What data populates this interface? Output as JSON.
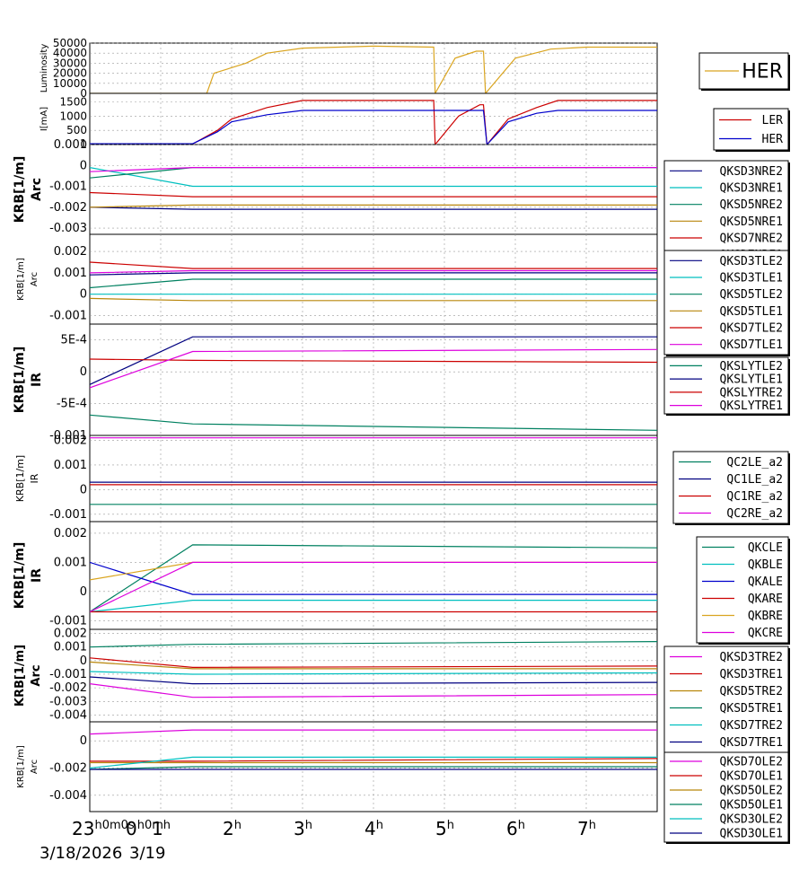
{
  "time_axis": {
    "date_start": "3/18/2026",
    "date_next": "3/19",
    "tick_labels": [
      "23h0m0s",
      "0h0m",
      "1h",
      "2h",
      "3h",
      "4h",
      "5h",
      "6h",
      "7h"
    ]
  },
  "chart_data": [
    {
      "type": "line",
      "ylabel": "Luminosity",
      "yticks": [
        "50000",
        "40000",
        "30000",
        "20000",
        "10000",
        "0"
      ],
      "ylim": [
        0,
        50000
      ],
      "legend": [
        "HER"
      ],
      "colors": [
        "#daa520"
      ],
      "series": [
        {
          "name": "HER",
          "x": [
            0,
            1.65,
            1.75,
            2.2,
            2.5,
            3.0,
            4.0,
            4.85,
            4.87,
            5.15,
            5.45,
            5.55,
            5.58,
            6.0,
            6.5,
            7.0,
            8.0
          ],
          "values": [
            0,
            0,
            20000,
            30000,
            40000,
            45000,
            47000,
            46000,
            0,
            35000,
            42000,
            42000,
            0,
            35000,
            44000,
            46000,
            46000
          ]
        }
      ]
    },
    {
      "type": "line",
      "ylabel": "I[mA]",
      "yticks": [
        "1500",
        "1000",
        "500",
        "0"
      ],
      "ylim": [
        0,
        1800
      ],
      "legend": [
        "LER",
        "HER"
      ],
      "colors": [
        "#cc0000",
        "#0000cc"
      ],
      "series": [
        {
          "name": "LER",
          "x": [
            0,
            1.45,
            1.8,
            2.0,
            2.5,
            3.0,
            4.85,
            4.87,
            5.2,
            5.5,
            5.55,
            5.6,
            5.9,
            6.3,
            6.6,
            8.0
          ],
          "values": [
            20,
            20,
            500,
            900,
            1300,
            1550,
            1550,
            0,
            1000,
            1400,
            1400,
            0,
            900,
            1300,
            1550,
            1550
          ]
        },
        {
          "name": "HER",
          "x": [
            0,
            1.45,
            1.8,
            2.0,
            2.5,
            3.0,
            5.55,
            5.6,
            5.9,
            6.3,
            6.6,
            8.0
          ],
          "values": [
            30,
            30,
            450,
            800,
            1050,
            1200,
            1200,
            0,
            800,
            1100,
            1200,
            1200
          ]
        }
      ]
    },
    {
      "type": "line",
      "ylabel": "KRB[1/m] Arc",
      "yticks": [
        "0.001",
        "0",
        "-0.001",
        "-0.002",
        "-0.003"
      ],
      "ylim": [
        -0.0033,
        0.001
      ],
      "legend": [
        "QKSD3NRE2",
        "QKSD3NRE1",
        "QKSD5NRE2",
        "QKSD5NRE1",
        "QKSD7NRE2",
        "QKSD7NRE1"
      ],
      "colors": [
        "#000080",
        "#00bfbf",
        "#008060",
        "#b8860b",
        "#cc0000",
        "#dd00dd"
      ],
      "series": [
        {
          "name": "QKSD3NRE2",
          "x": [
            0,
            1.45,
            8.0
          ],
          "values": [
            -0.002,
            -0.0021,
            -0.0021
          ]
        },
        {
          "name": "QKSD3NRE1",
          "x": [
            0,
            1.45,
            8.0
          ],
          "values": [
            -0.0001,
            -0.001,
            -0.001
          ]
        },
        {
          "name": "QKSD5NRE2",
          "x": [
            0,
            1.45,
            8.0
          ],
          "values": [
            -0.0006,
            -0.0001,
            -0.0001
          ]
        },
        {
          "name": "QKSD5NRE1",
          "x": [
            0,
            1.45,
            8.0
          ],
          "values": [
            -0.002,
            -0.0019,
            -0.0019
          ]
        },
        {
          "name": "QKSD7NRE2",
          "x": [
            0,
            1.45,
            8.0
          ],
          "values": [
            -0.0013,
            -0.0015,
            -0.0015
          ]
        },
        {
          "name": "QKSD7NRE1",
          "x": [
            0,
            1.45,
            8.0
          ],
          "values": [
            -0.0003,
            -0.0001,
            -0.0001
          ]
        }
      ]
    },
    {
      "type": "line",
      "ylabel": "KRB[1/m] Arc",
      "yticks": [
        "0.002",
        "0.001",
        "0",
        "-0.001"
      ],
      "ylim": [
        -0.0014,
        0.0028
      ],
      "legend": [
        "QKSD3TLE2",
        "QKSD3TLE1",
        "QKSD5TLE2",
        "QKSD5TLE1",
        "QKSD7TLE2",
        "QKSD7TLE1"
      ],
      "colors": [
        "#000080",
        "#00bfbf",
        "#008060",
        "#b8860b",
        "#cc0000",
        "#dd00dd"
      ],
      "series": [
        {
          "name": "QKSD3TLE2",
          "x": [
            0,
            1.45,
            8.0
          ],
          "values": [
            0.0009,
            0.001,
            0.001
          ]
        },
        {
          "name": "QKSD3TLE1",
          "x": [
            0,
            1.45,
            8.0
          ],
          "values": [
            0.0,
            0.0,
            0.0
          ]
        },
        {
          "name": "QKSD5TLE2",
          "x": [
            0,
            1.45,
            8.0
          ],
          "values": [
            0.0003,
            0.0007,
            0.0007
          ]
        },
        {
          "name": "QKSD5TLE1",
          "x": [
            0,
            1.45,
            8.0
          ],
          "values": [
            -0.0002,
            -0.0003,
            -0.0003
          ]
        },
        {
          "name": "QKSD7TLE2",
          "x": [
            0,
            1.45,
            8.0
          ],
          "values": [
            0.0015,
            0.0012,
            0.0012
          ]
        },
        {
          "name": "QKSD7TLE1",
          "x": [
            0,
            1.45,
            8.0
          ],
          "values": [
            0.001,
            0.0011,
            0.0011
          ]
        }
      ]
    },
    {
      "type": "line",
      "ylabel": "KRB[1/m] IR",
      "yticks": [
        "5E-4",
        "0",
        "-5E-4",
        "-0.001"
      ],
      "ylim": [
        -0.001,
        0.00075
      ],
      "legend": [
        "QKSLYTLE2",
        "QKSLYTLE1",
        "QKSLYTRE2",
        "QKSLYTRE1"
      ],
      "colors": [
        "#008060",
        "#000080",
        "#cc0000",
        "#dd00dd"
      ],
      "series": [
        {
          "name": "QKSLYTLE2",
          "x": [
            0,
            1.45,
            8.0
          ],
          "values": [
            -0.00068,
            -0.00082,
            -0.00092
          ]
        },
        {
          "name": "QKSLYTLE1",
          "x": [
            0,
            1.45,
            8.0
          ],
          "values": [
            -0.0002,
            0.00055,
            0.00055
          ]
        },
        {
          "name": "QKSLYTRE2",
          "x": [
            0,
            1.45,
            8.0
          ],
          "values": [
            0.0002,
            0.00018,
            0.00015
          ]
        },
        {
          "name": "QKSLYTRE1",
          "x": [
            0,
            1.45,
            8.0
          ],
          "values": [
            -0.00025,
            0.00032,
            0.00035
          ]
        }
      ]
    },
    {
      "type": "line",
      "ylabel": "KRB[1/m] IR",
      "yticks": [
        "0.002",
        "0.001",
        "0",
        "-0.001"
      ],
      "ylim": [
        -0.0013,
        0.0022
      ],
      "legend": [
        "QC2LE_a2",
        "QC1LE_a2",
        "QC1RE_a2",
        "QC2RE_a2"
      ],
      "colors": [
        "#008060",
        "#000080",
        "#cc0000",
        "#dd00dd"
      ],
      "series": [
        {
          "name": "QC2LE_a2",
          "x": [
            0,
            8.0
          ],
          "values": [
            -0.0006,
            -0.0006
          ]
        },
        {
          "name": "QC1LE_a2",
          "x": [
            0,
            8.0
          ],
          "values": [
            0.0003,
            0.0003
          ]
        },
        {
          "name": "QC1RE_a2",
          "x": [
            0,
            8.0
          ],
          "values": [
            0.0002,
            0.0002
          ]
        },
        {
          "name": "QC2RE_a2",
          "x": [
            0,
            8.0
          ],
          "values": [
            0.0021,
            0.0021
          ]
        }
      ]
    },
    {
      "type": "line",
      "ylabel": "KRB[1/m] IR",
      "yticks": [
        "0.002",
        "0.001",
        "0",
        "-0.001"
      ],
      "ylim": [
        -0.0013,
        0.0024
      ],
      "legend": [
        "QKCLE",
        "QKBLE",
        "QKALE",
        "QKARE",
        "QKBRE",
        "QKCRE"
      ],
      "colors": [
        "#008060",
        "#00bfbf",
        "#0000cc",
        "#cc0000",
        "#daa520",
        "#dd00dd"
      ],
      "series": [
        {
          "name": "QKCLE",
          "x": [
            0,
            1.45,
            8.0
          ],
          "values": [
            -0.0007,
            0.0016,
            0.0015
          ]
        },
        {
          "name": "QKBLE",
          "x": [
            0,
            1.45,
            8.0
          ],
          "values": [
            -0.0007,
            -0.0003,
            -0.0003
          ]
        },
        {
          "name": "QKALE",
          "x": [
            0,
            1.45,
            8.0
          ],
          "values": [
            0.001,
            -0.0001,
            -0.0001
          ]
        },
        {
          "name": "QKARE",
          "x": [
            0,
            1.45,
            8.0
          ],
          "values": [
            -0.0007,
            -0.0007,
            -0.0007
          ]
        },
        {
          "name": "QKBRE",
          "x": [
            0,
            1.45,
            8.0
          ],
          "values": [
            0.0004,
            0.001,
            0.001
          ]
        },
        {
          "name": "QKCRE",
          "x": [
            0,
            1.45,
            8.0
          ],
          "values": [
            -0.0007,
            0.001,
            0.001
          ]
        }
      ]
    },
    {
      "type": "line",
      "ylabel": "KRB[1/m] Arc",
      "yticks": [
        "0.002",
        "0.001",
        "0",
        "-0.001",
        "-0.002",
        "-0.003",
        "-0.004"
      ],
      "ylim": [
        -0.0045,
        0.0023
      ],
      "legend": [
        "QKSD3TRE2",
        "QKSD3TRE1",
        "QKSD5TRE2",
        "QKSD5TRE1",
        "QKSD7TRE2",
        "QKSD7TRE1"
      ],
      "colors": [
        "#dd00dd",
        "#cc0000",
        "#b8860b",
        "#008060",
        "#00bfbf",
        "#000080"
      ],
      "series": [
        {
          "name": "QKSD3TRE2",
          "x": [
            0,
            1.45,
            8.0
          ],
          "values": [
            -0.0017,
            -0.0027,
            -0.0025
          ]
        },
        {
          "name": "QKSD3TRE1",
          "x": [
            0,
            1.45,
            8.0
          ],
          "values": [
            0.0002,
            -0.0005,
            -0.0004
          ]
        },
        {
          "name": "QKSD5TRE2",
          "x": [
            0,
            1.45,
            8.0
          ],
          "values": [
            -0.0001,
            -0.0006,
            -0.0006
          ]
        },
        {
          "name": "QKSD5TRE1",
          "x": [
            0,
            1.45,
            8.0
          ],
          "values": [
            0.001,
            0.0012,
            0.0014
          ]
        },
        {
          "name": "QKSD7TRE2",
          "x": [
            0,
            1.45,
            8.0
          ],
          "values": [
            -0.0008,
            -0.001,
            -0.0009
          ]
        },
        {
          "name": "QKSD7TRE1",
          "x": [
            0,
            1.45,
            8.0
          ],
          "values": [
            -0.0012,
            -0.0017,
            -0.0016
          ]
        }
      ]
    },
    {
      "type": "line",
      "ylabel": "KRB[1/m] Arc",
      "yticks": [
        "0",
        "-0.002",
        "-0.004"
      ],
      "ylim": [
        -0.0052,
        0.0014
      ],
      "legend": [
        "QKSD7OLE2",
        "QKSD7OLE1",
        "QKSD5OLE2",
        "QKSD5OLE1",
        "QKSD3OLE2",
        "QKSD3OLE1"
      ],
      "colors": [
        "#dd00dd",
        "#cc0000",
        "#b8860b",
        "#008060",
        "#00bfbf",
        "#000080"
      ],
      "series": [
        {
          "name": "QKSD7OLE2",
          "x": [
            0,
            1.45,
            8.0
          ],
          "values": [
            0.0005,
            0.0008,
            0.0008
          ]
        },
        {
          "name": "QKSD7OLE1",
          "x": [
            0,
            1.45,
            8.0
          ],
          "values": [
            -0.0015,
            -0.0015,
            -0.0013
          ]
        },
        {
          "name": "QKSD5OLE2",
          "x": [
            0,
            1.45,
            8.0
          ],
          "values": [
            -0.0016,
            -0.0016,
            -0.0016
          ]
        },
        {
          "name": "QKSD5OLE1",
          "x": [
            0,
            1.45,
            8.0
          ],
          "values": [
            -0.0021,
            -0.0019,
            -0.0019
          ]
        },
        {
          "name": "QKSD3OLE2",
          "x": [
            0,
            1.45,
            8.0
          ],
          "values": [
            -0.002,
            -0.0012,
            -0.0012
          ]
        },
        {
          "name": "QKSD3OLE1",
          "x": [
            0,
            1.45,
            8.0
          ],
          "values": [
            -0.0021,
            -0.0021,
            -0.0021
          ]
        }
      ]
    }
  ]
}
